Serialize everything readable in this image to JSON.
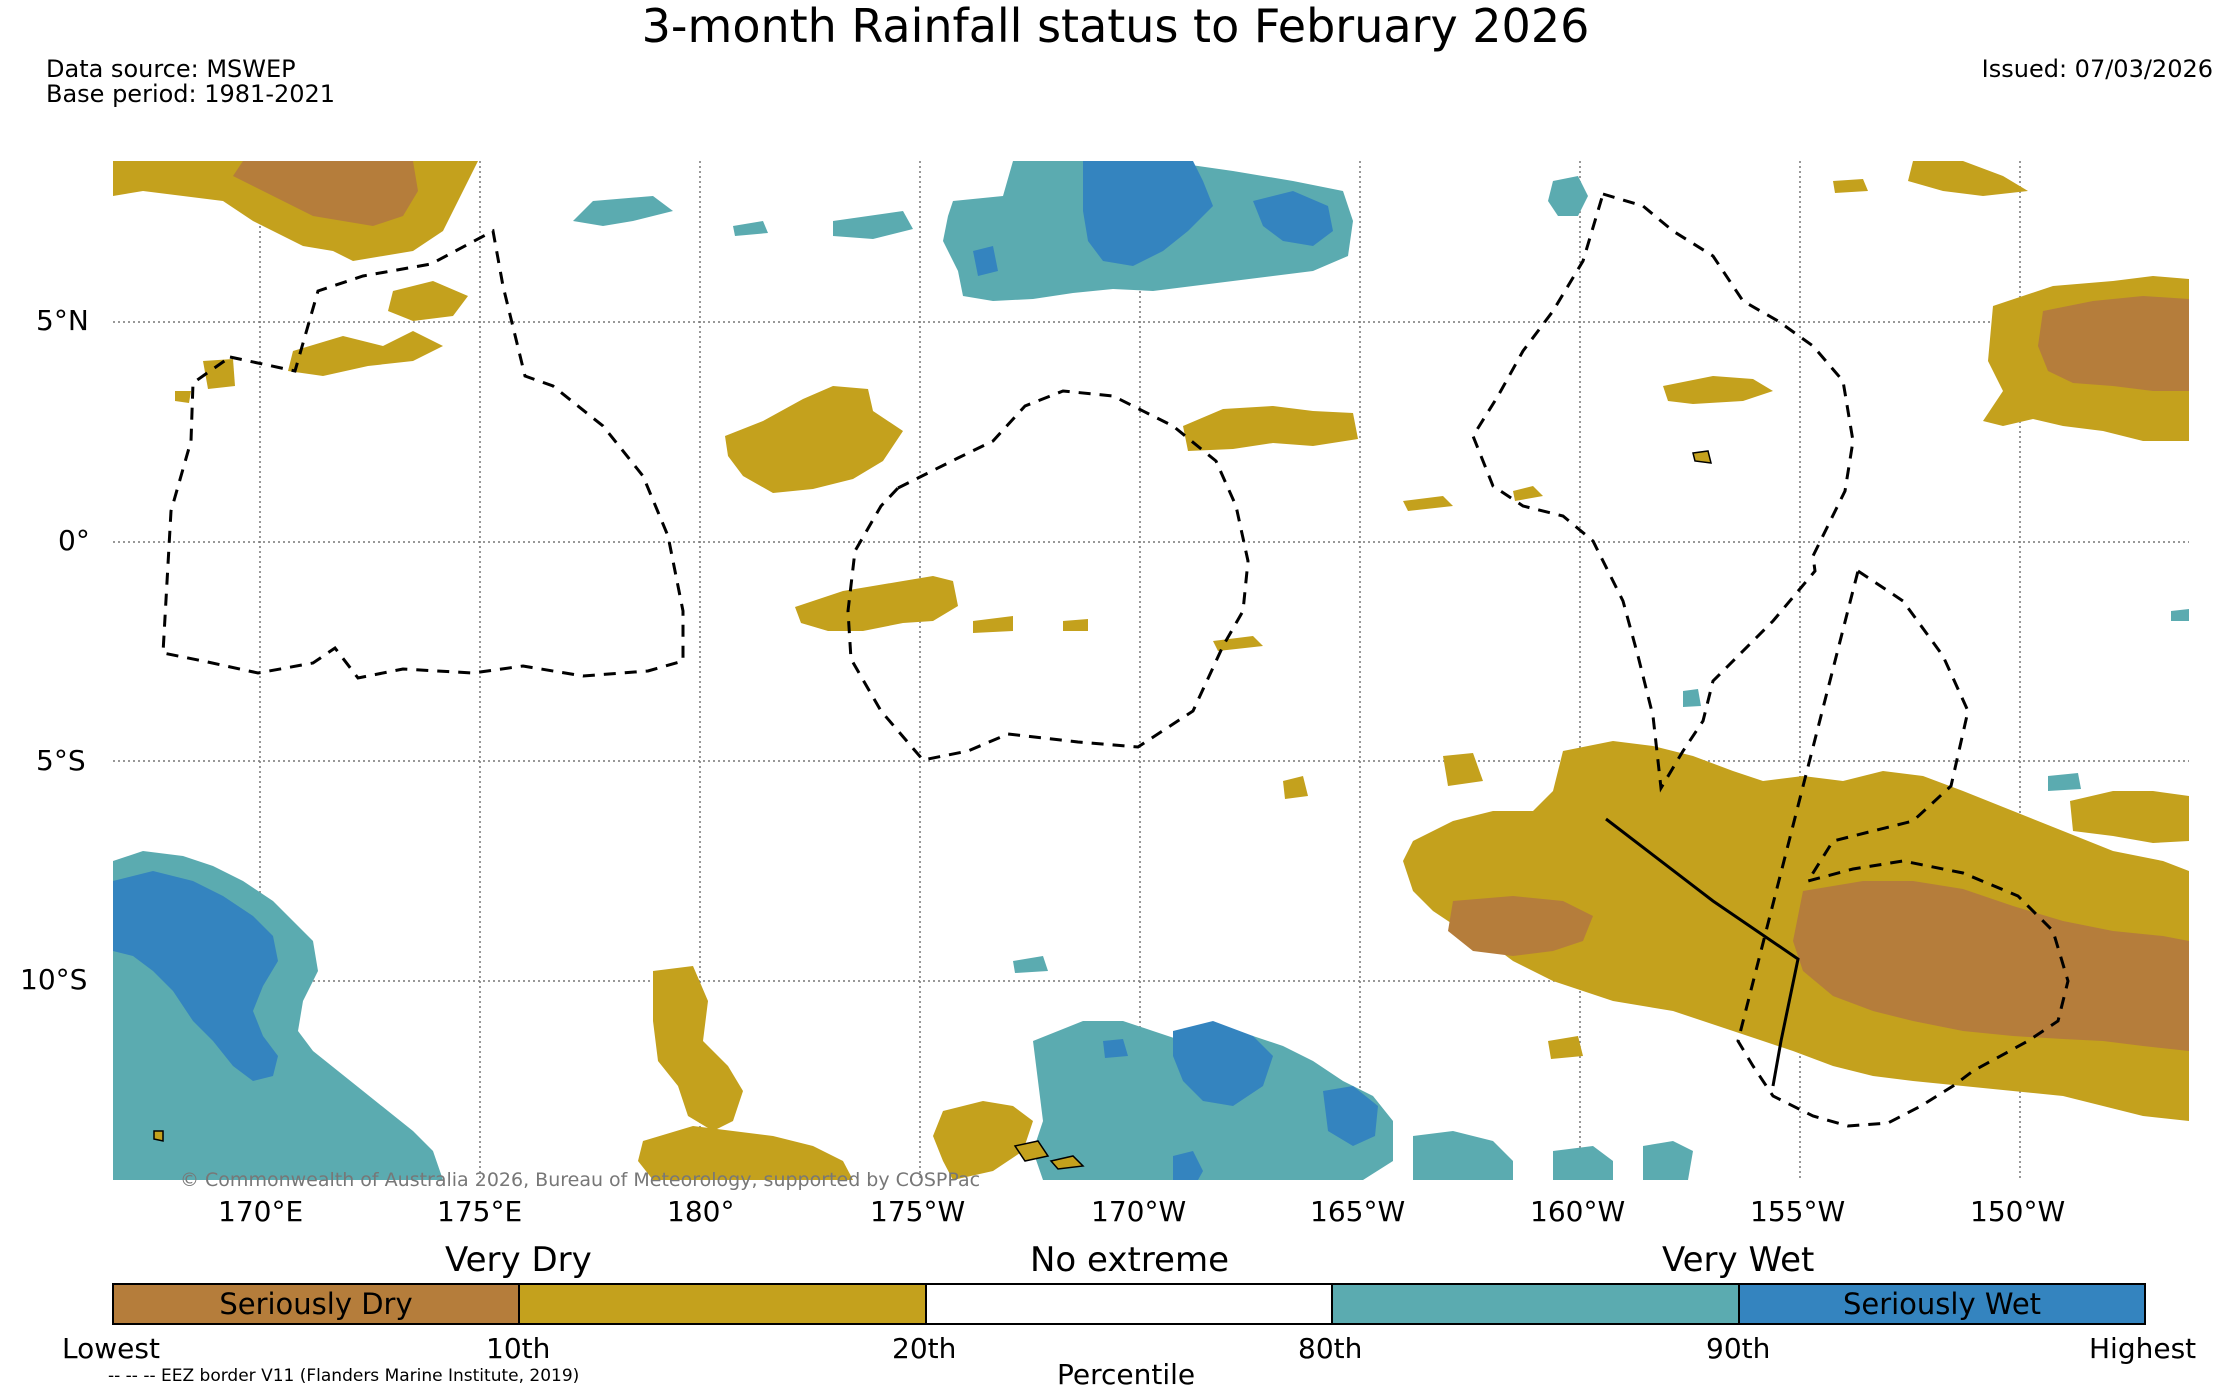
{
  "title": "3-month Rainfall status to February 2026",
  "data_source": "Data source: MSWEP",
  "base_period": "Base period: 1981-2021",
  "issued": "Issued: 07/03/2026",
  "lat_labels": [
    "5°N",
    "0°",
    "5°S",
    "10°S"
  ],
  "lon_labels": [
    "170°E",
    "175°E",
    "180°",
    "175°W",
    "170°W",
    "165°W",
    "160°W",
    "155°W",
    "150°W"
  ],
  "copyright": "© Commonwealth of Australia 2026, Bureau of Meteorology, supported by COSPPac",
  "legend": {
    "categories": [
      "Very Dry",
      "No extreme",
      "Very Wet"
    ],
    "segments": [
      {
        "label": "Seriously Dry",
        "color": "#b57d3b"
      },
      {
        "label": "",
        "color": "#c4a11d"
      },
      {
        "label": "",
        "color": "#ffffff"
      },
      {
        "label": "",
        "color": "#5babb0"
      },
      {
        "label": "Seriously Wet",
        "color": "#3484bf"
      }
    ],
    "ticks": [
      "Lowest",
      "10th",
      "20th",
      "80th",
      "90th",
      "Highest"
    ],
    "axis_title": "Percentile"
  },
  "eez_note": "-- -- -- EEZ border V11 (Flanders Marine Institute, 2019)",
  "colors": {
    "seriously_dry": "#b57d3b",
    "very_dry": "#c4a11d",
    "very_wet": "#5babb0",
    "seriously_wet": "#3484bf"
  }
}
